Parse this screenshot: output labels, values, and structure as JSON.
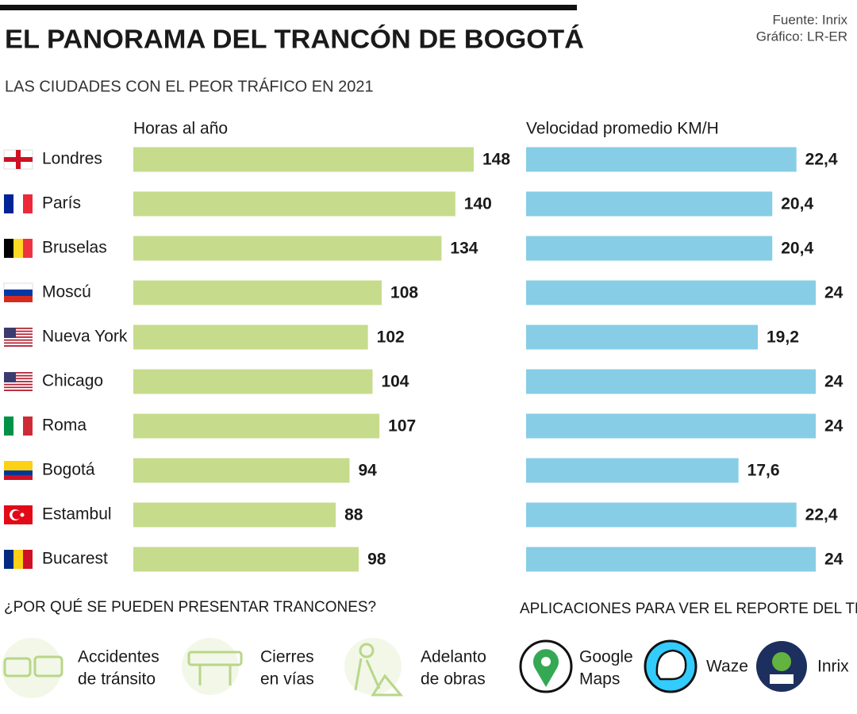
{
  "chart_data": {
    "type": "bar",
    "orientation": "horizontal",
    "title": "EL PANORAMA DEL TRANCÓN DE BOGOTÁ",
    "subtitle": "LAS CIUDADES CON EL PEOR TRÁFICO EN 2021",
    "source": [
      "Fuente: Inrix",
      "Gráfico: LR-ER"
    ],
    "categories": [
      "Londres",
      "París",
      "Bruselas",
      "Moscú",
      "Nueva York",
      "Chicago",
      "Roma",
      "Bogotá",
      "Estambul",
      "Bucarest"
    ],
    "series": [
      {
        "name": "Horas al año",
        "color": "#c6dc8c",
        "values": [
          148,
          140,
          134,
          108,
          102,
          104,
          107,
          94,
          88,
          98
        ]
      },
      {
        "name": "Velocidad promedio KM/H",
        "color": "#87cde6",
        "values": [
          22.4,
          20.4,
          20.4,
          24,
          19.2,
          24,
          24,
          17.6,
          22.4,
          24
        ],
        "value_labels": [
          "22,4",
          "20,4",
          "20,4",
          "24",
          "19,2",
          "24",
          "24",
          "17,6",
          "22,4",
          "24"
        ]
      }
    ]
  },
  "causes": {
    "title": "¿POR QUÉ SE PUEDEN PRESENTAR TRANCONES?",
    "items": [
      [
        "Accidentes",
        "de tránsito"
      ],
      [
        "Cierres",
        "en vías"
      ],
      [
        "Adelanto",
        "de obras"
      ]
    ]
  },
  "apps": {
    "title": "APLICACIONES PARA VER EL REPORTE DEL TRÁFICO",
    "items": [
      [
        "Google",
        "Maps"
      ],
      [
        "Waze"
      ],
      [
        "Inrix"
      ]
    ]
  }
}
